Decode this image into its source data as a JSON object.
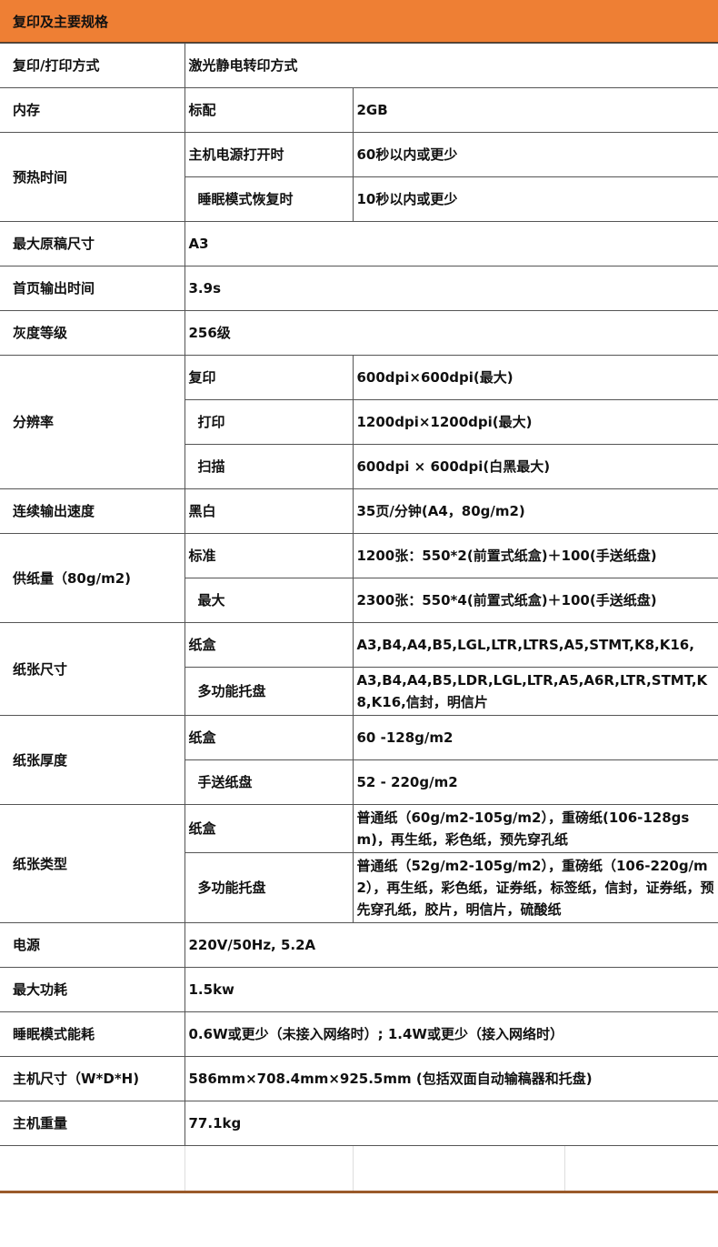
{
  "title": "复印及主要规格",
  "header_color": "#EE7F34",
  "rows": [
    {
      "label": "复印/打印方式",
      "value": "激光静电转印方式"
    },
    {
      "label": "内存",
      "sub": [
        {
          "name": "标配",
          "value": "2GB"
        }
      ]
    },
    {
      "label": "预热时间",
      "sub": [
        {
          "name": "主机电源打开时",
          "value": "60秒以内或更少"
        },
        {
          "name": "睡眠模式恢复时",
          "value": "10秒以内或更少"
        }
      ]
    },
    {
      "label": "最大原稿尺寸",
      "value": "A3"
    },
    {
      "label": "首页输出时间",
      "value": "3.9s"
    },
    {
      "label": "灰度等级",
      "value": "256级"
    },
    {
      "label": "分辨率",
      "sub": [
        {
          "name": "复印",
          "value": "600dpi×600dpi(最大)"
        },
        {
          "name": "打印",
          "value": "1200dpi×1200dpi(最大)"
        },
        {
          "name": "扫描",
          "value": "600dpi × 600dpi(白黑最大)"
        }
      ]
    },
    {
      "label": "连续输出速度",
      "sub": [
        {
          "name": "黑白",
          "value": "35页/分钟(A4，80g/m2)"
        }
      ]
    },
    {
      "label": "供纸量（80g/m2)",
      "sub": [
        {
          "name": "标准",
          "value": "1200张：550*2(前置式纸盒)＋100(手送纸盘)"
        },
        {
          "name": "最大",
          "value": "2300张：550*4(前置式纸盒)＋100(手送纸盘)"
        }
      ]
    },
    {
      "label": "纸张尺寸",
      "sub": [
        {
          "name": "纸盒",
          "value": "A3,B4,A4,B5,LGL,LTR,LTRS,A5,STMT,K8,K16,"
        },
        {
          "name": "多功能托盘",
          "value": "A3,B4,A4,B5,LDR,LGL,LTR,A5,A6R,LTR,STMT,K8,K16,信封，明信片"
        }
      ]
    },
    {
      "label": "纸张厚度",
      "sub": [
        {
          "name": "纸盒",
          "value": "60 -128g/m2"
        },
        {
          "name": "手送纸盘",
          "value": "52 - 220g/m2"
        }
      ]
    },
    {
      "label": "纸张类型",
      "sub": [
        {
          "name": "纸盒",
          "value": "普通纸（60g/m2-105g/m2），重磅纸(106-128gsm)，再生纸，彩色纸，预先穿孔纸"
        },
        {
          "name": "多功能托盘",
          "value": "普通纸（52g/m2-105g/m2），重磅纸（106-220g/m2），再生纸，彩色纸，证券纸，标签纸，信封，证券纸，预先穿孔纸，胶片，明信片，硫酸纸"
        }
      ]
    },
    {
      "label": "电源",
      "value": "220V/50Hz, 5.2A"
    },
    {
      "label": "最大功耗",
      "value": "1.5kw"
    },
    {
      "label": "睡眠模式能耗",
      "value": "0.6W或更少（未接入网络时）; 1.4W或更少（接入网络时）"
    },
    {
      "label": "主机尺寸（W*D*H)",
      "value": "586mm×708.4mm×925.5mm (包括双面自动输稿器和托盘)"
    },
    {
      "label": "主机重量",
      "value": "77.1kg"
    }
  ]
}
